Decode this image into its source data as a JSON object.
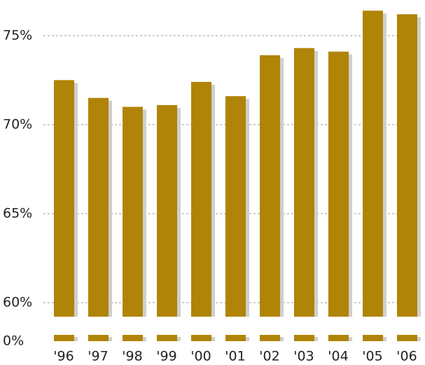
{
  "chart_data": {
    "type": "bar",
    "categories": [
      "'96",
      "'97",
      "'98",
      "'99",
      "'00",
      "'01",
      "'02",
      "'03",
      "'04",
      "'05",
      "'06"
    ],
    "values": [
      72.5,
      71.5,
      71.0,
      71.1,
      72.4,
      71.6,
      73.9,
      74.3,
      74.1,
      76.4,
      76.2
    ],
    "color": "#b08406",
    "ylim": [
      0,
      77
    ],
    "yticks": [
      {
        "value": 0,
        "label": "0%"
      },
      {
        "value": 60,
        "label": "60%"
      },
      {
        "value": 65,
        "label": "65%"
      },
      {
        "value": 70,
        "label": "70%"
      },
      {
        "value": 75,
        "label": "75%"
      }
    ],
    "grid": true
  }
}
